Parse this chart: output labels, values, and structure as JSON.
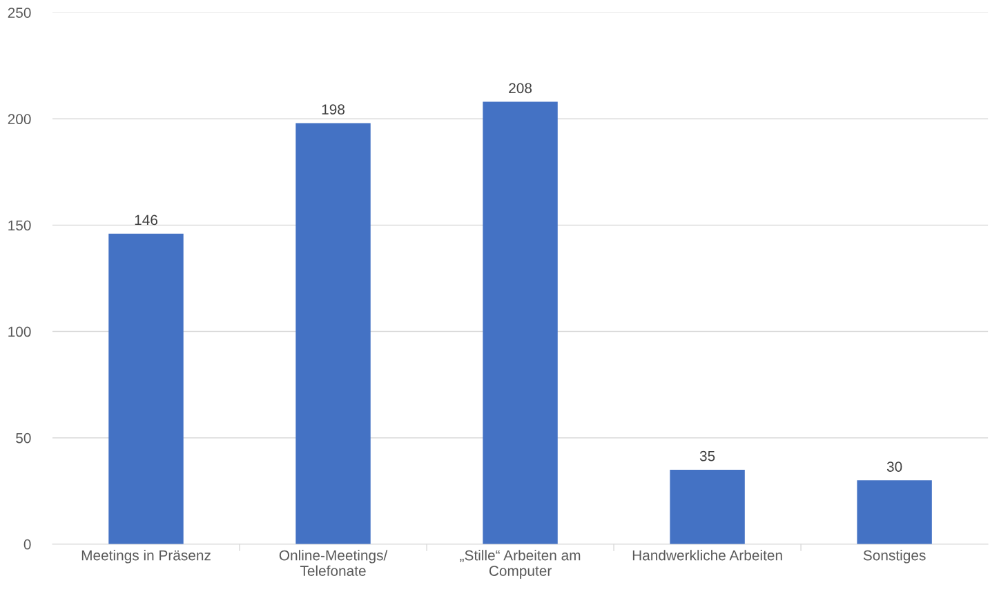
{
  "chart_data": {
    "type": "bar",
    "categories": [
      "Meetings in Präsenz",
      "Online-Meetings/\nTelefonate",
      "„Stille“ Arbeiten am\nComputer",
      "Handwerkliche Arbeiten",
      "Sonstiges"
    ],
    "values": [
      146,
      198,
      208,
      35,
      30
    ],
    "color": "#4472c4",
    "ylim": [
      0,
      250
    ],
    "yticks": [
      0,
      50,
      100,
      150,
      200,
      250
    ],
    "grid": "y",
    "data_labels": true
  }
}
